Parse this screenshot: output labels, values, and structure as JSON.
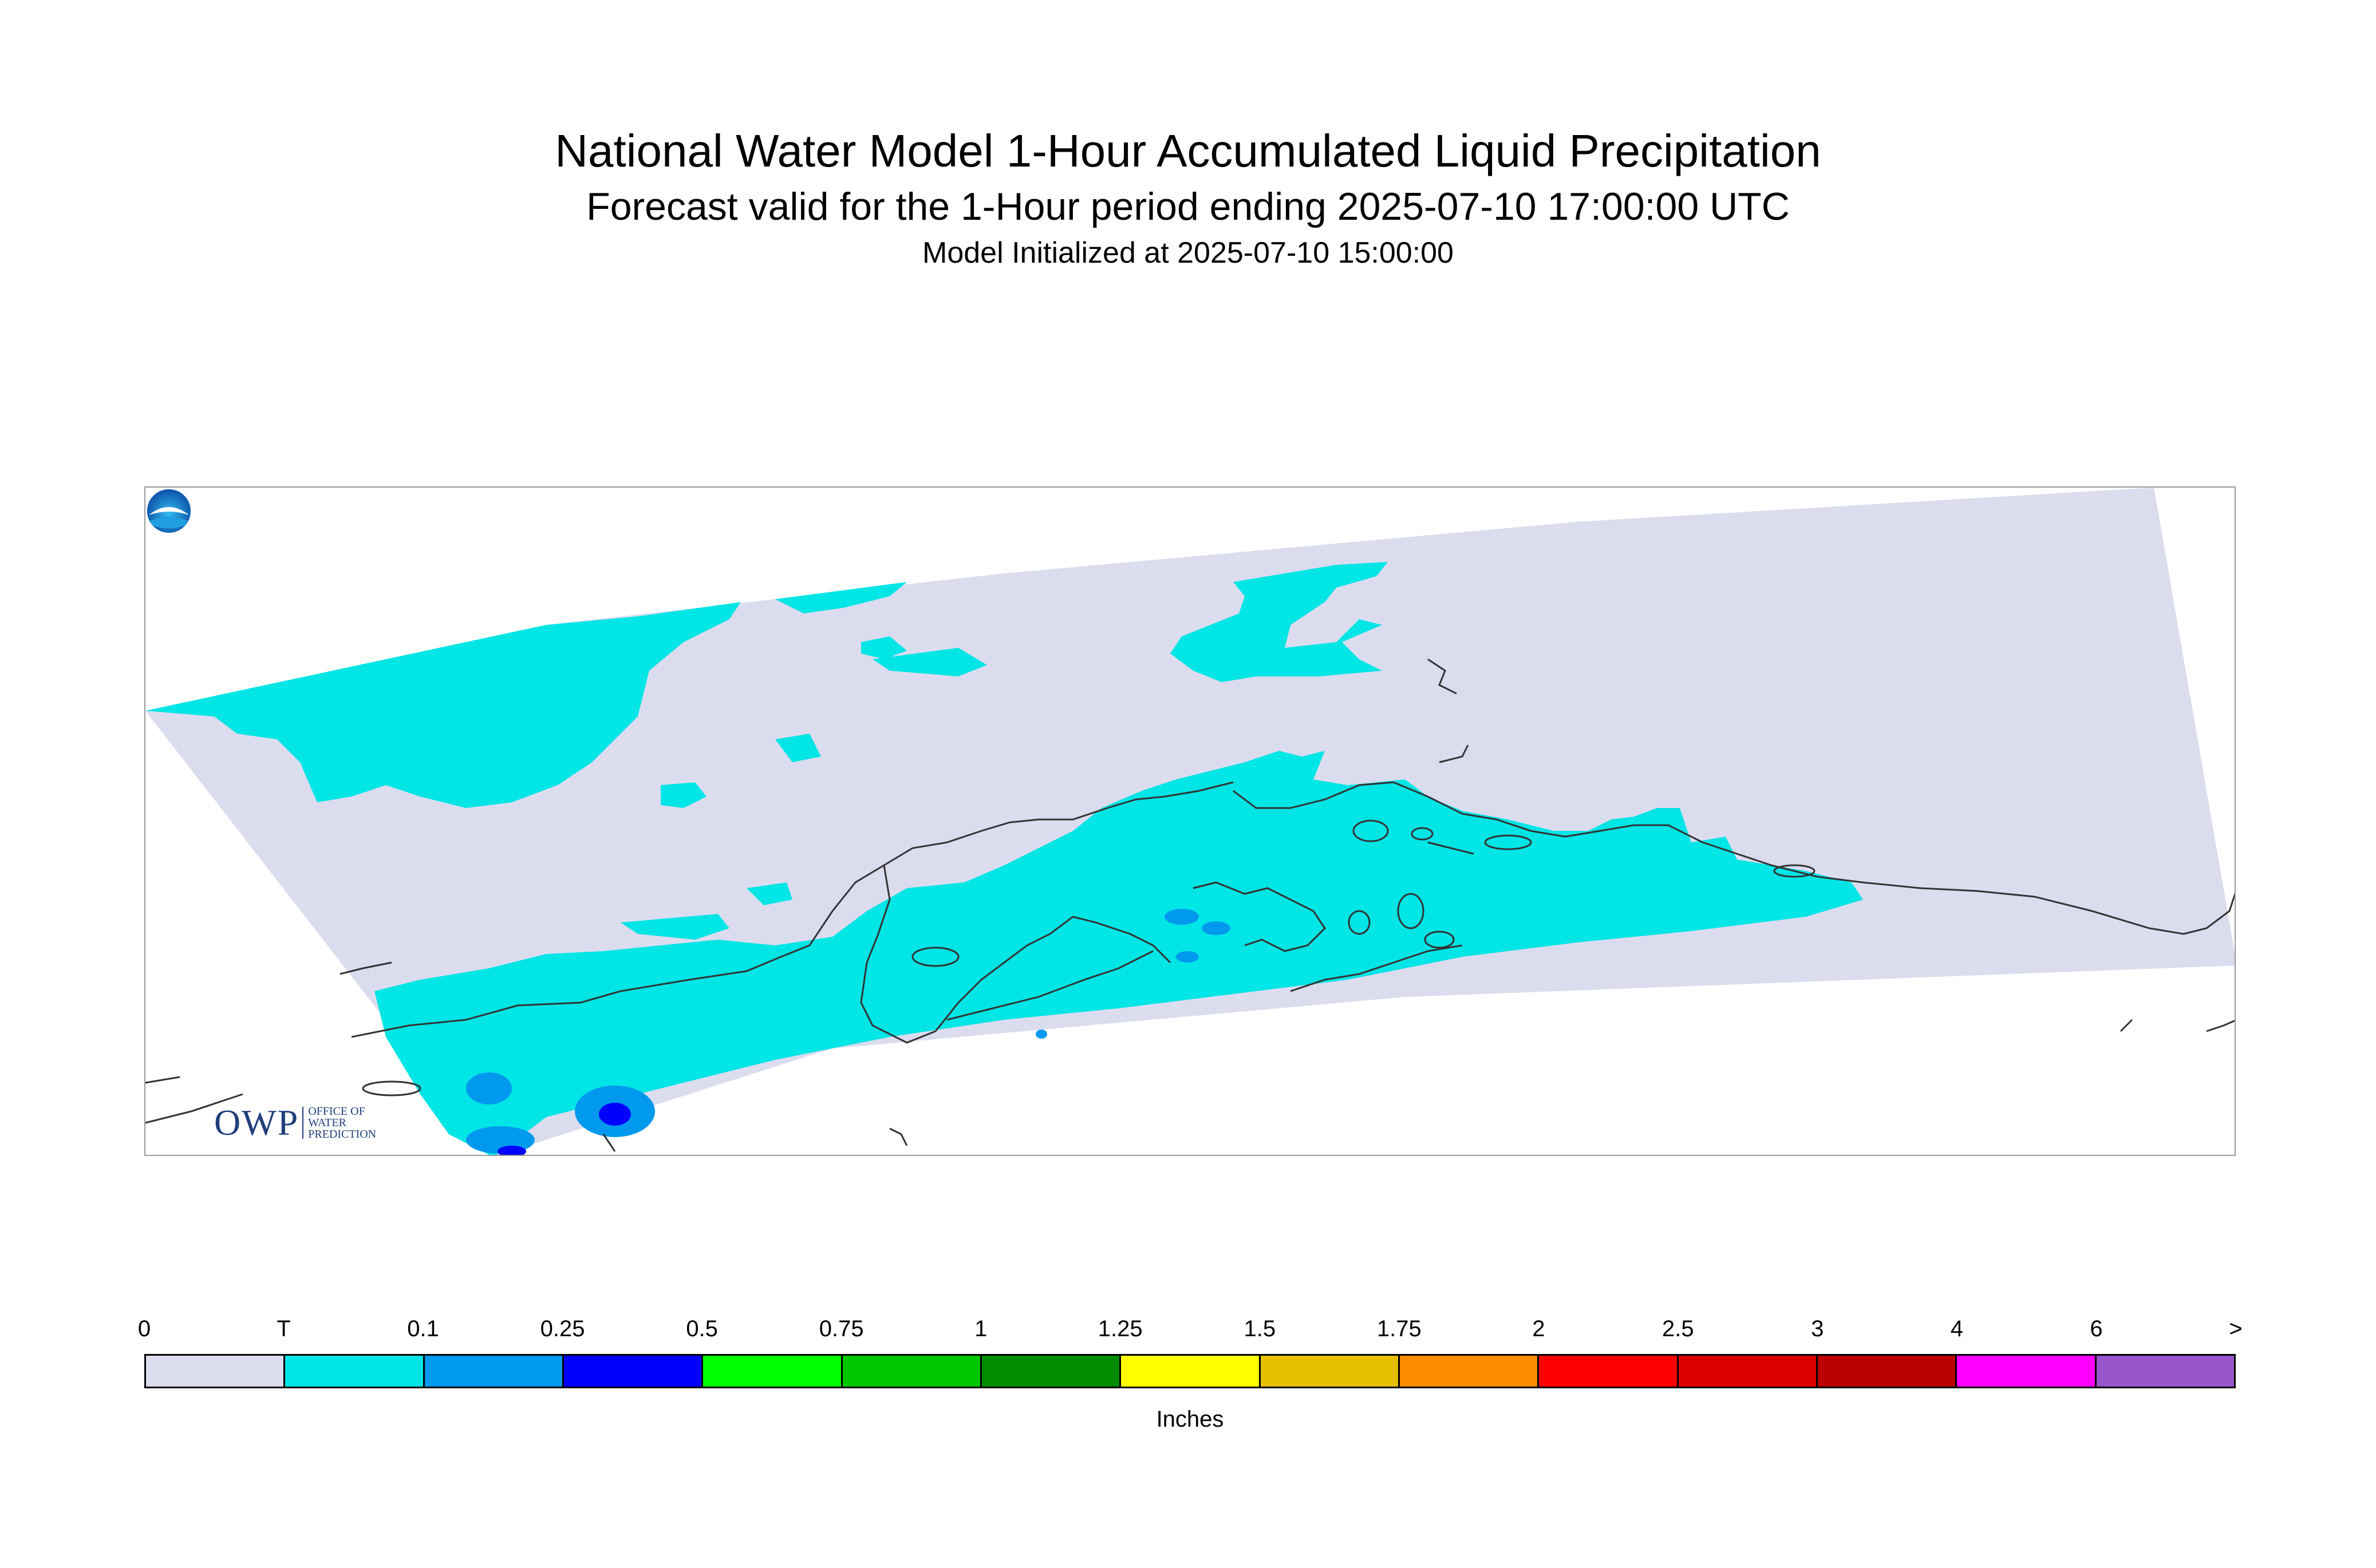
{
  "titles": {
    "main": "National Water Model 1-Hour Accumulated Liquid Precipitation",
    "forecast": "Forecast valid for the 1-Hour period ending 2025-07-10 17:00:00 UTC",
    "init": "Model Initialized at 2025-07-10 15:00:00"
  },
  "logos": {
    "owp_big": "OWP",
    "owp_line1": "OFFICE OF",
    "owp_line2": "WATER",
    "owp_line3": "PREDICTION",
    "noaa": "NOAA"
  },
  "legend": {
    "labels": [
      "0",
      "T",
      "0.1",
      "0.25",
      "0.5",
      "0.75",
      "1",
      "1.25",
      "1.5",
      "1.75",
      "2",
      "2.5",
      "3",
      "4",
      "6",
      ">"
    ],
    "colors": [
      "#dcdcef",
      "#00e5e5",
      "#0099ee",
      "#0000ff",
      "#00ff00",
      "#00c600",
      "#008c00",
      "#ffff00",
      "#e5bf00",
      "#ff8c00",
      "#ff0000",
      "#dd0000",
      "#bb0000",
      "#ff00ff",
      "#9955cc"
    ],
    "units": "Inches"
  },
  "map_colors": {
    "domain": "#dcdcef",
    "trace": "#00e5e5",
    "light_blue": "#0099ee",
    "blue": "#0000ff",
    "coast": "#333333"
  }
}
